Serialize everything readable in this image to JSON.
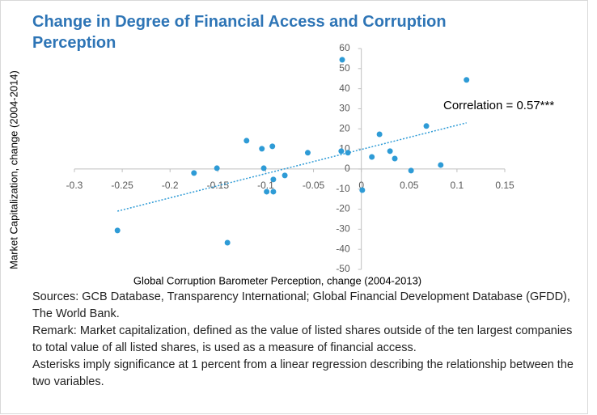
{
  "chart_data": {
    "type": "scatter",
    "title": "Change in Degree of Financial Access and Corruption Perception",
    "x_label": "Global Corruption Barometer Perception, change (2004-2013)",
    "y_label": "Market Capitalization, change (2004-2014)",
    "annotation": "Correlation = 0.57***",
    "notes": [
      "Sources: GCB Database, Transparency International; Global Financial Development Database (GFDD), The World Bank.",
      "Remark: Market capitalization, defined as the value of listed shares outside of the ten largest companies to total value of all listed shares, is used as a measure of financial access.",
      "Asterisks imply significance at 1 percent from a linear regression describing the relationship between the two variables."
    ],
    "color": "#2e9bd6",
    "xlim": [
      -0.3,
      0.15
    ],
    "xticks": [
      -0.3,
      -0.25,
      -0.2,
      -0.15,
      -0.1,
      -0.05,
      0,
      0.05,
      0.1,
      0.15
    ],
    "ylim": [
      -50,
      60
    ],
    "yticks": [
      -50,
      -40,
      -30,
      -20,
      -10,
      0,
      10,
      20,
      30,
      40,
      50,
      60
    ],
    "x": [
      -0.02,
      0.11,
      0.068,
      0.019,
      -0.12,
      -0.093,
      -0.104,
      -0.056,
      -0.021,
      -0.014,
      0.03,
      0.011,
      0.035,
      -0.175,
      -0.151,
      -0.102,
      0.052,
      0.083,
      -0.08,
      -0.092,
      -0.099,
      -0.092,
      0.001,
      -0.255,
      -0.14
    ],
    "values": [
      54.4,
      44.4,
      21.4,
      17.3,
      14.1,
      11.3,
      10.1,
      8.1,
      8.9,
      8.1,
      8.9,
      6.0,
      5.2,
      -2.0,
      0.4,
      0.4,
      -0.8,
      2.0,
      -3.2,
      -5.2,
      -11.3,
      -11.3,
      -10.5,
      -30.6,
      -36.7
    ],
    "trendline": {
      "x": [
        -0.255,
        0.11
      ],
      "y": [
        -21,
        23
      ]
    }
  }
}
